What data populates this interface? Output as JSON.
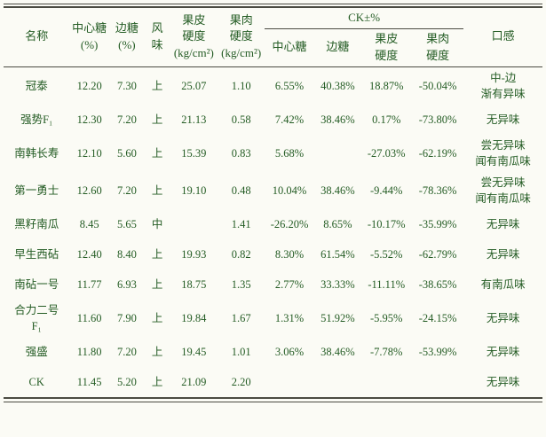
{
  "colors": {
    "text": "#245c24",
    "line": "#4b4b42",
    "background": "#fbfbf5"
  },
  "table": {
    "headers": {
      "name": "名称",
      "center_sugar": "中心糖\n(%)",
      "edge_sugar": "边糖\n(%)",
      "flavor": "风\n味",
      "rind_hardness": "果皮\n硬度\n(kg/cm²)",
      "flesh_hardness": "果肉\n硬度\n(kg/cm²)",
      "ck_group": "CK±%",
      "ck_center_sugar": "中心糖",
      "ck_edge_sugar": "边糖",
      "ck_rind_hardness": "果皮\n硬度",
      "ck_flesh_hardness": "果肉\n硬度",
      "taste": "口感"
    },
    "column_keys": [
      "center-sugar",
      "edge-sugar",
      "flavor",
      "rind-hardness",
      "flesh-hardness",
      "ck-center-sugar",
      "ck-edge-sugar",
      "ck-rind-hardness",
      "ck-flesh-hardness",
      "taste"
    ],
    "rows": [
      {
        "name": "冠泰",
        "cells": [
          "12.20",
          "7.30",
          "上",
          "25.07",
          "1.10",
          "6.55%",
          "40.38%",
          "18.87%",
          "-50.04%",
          "中-边\n渐有异味"
        ]
      },
      {
        "name": "强势F₁",
        "cells": [
          "12.30",
          "7.20",
          "上",
          "21.13",
          "0.58",
          "7.42%",
          "38.46%",
          "0.17%",
          "-73.80%",
          "无异味"
        ]
      },
      {
        "name": "南韩长寿",
        "cells": [
          "12.10",
          "5.60",
          "上",
          "15.39",
          "0.83",
          "5.68%",
          "",
          "-27.03%",
          "-62.19%",
          "尝无异味\n闻有南瓜味"
        ]
      },
      {
        "name": "第一勇士",
        "cells": [
          "12.60",
          "7.20",
          "上",
          "19.10",
          "0.48",
          "10.04%",
          "38.46%",
          "-9.44%",
          "-78.36%",
          "尝无异味\n闻有南瓜味"
        ]
      },
      {
        "name": "黑籽南瓜",
        "cells": [
          "8.45",
          "5.65",
          "中",
          "",
          "1.41",
          "-26.20%",
          "8.65%",
          "-10.17%",
          "-35.99%",
          "无异味"
        ]
      },
      {
        "name": "早生西砧",
        "cells": [
          "12.40",
          "8.40",
          "上",
          "19.93",
          "0.82",
          "8.30%",
          "61.54%",
          "-5.52%",
          "-62.79%",
          "无异味"
        ]
      },
      {
        "name": "南砧一号",
        "cells": [
          "11.77",
          "6.93",
          "上",
          "18.75",
          "1.35",
          "2.77%",
          "33.33%",
          "-11.11%",
          "-38.65%",
          "有南瓜味"
        ]
      },
      {
        "name": "合力二号\nF₁",
        "cells": [
          "11.60",
          "7.90",
          "上",
          "19.84",
          "1.67",
          "1.31%",
          "51.92%",
          "-5.95%",
          "-24.15%",
          "无异味"
        ]
      },
      {
        "name": "强盛",
        "cells": [
          "11.80",
          "7.20",
          "上",
          "19.45",
          "1.01",
          "3.06%",
          "38.46%",
          "-7.78%",
          "-53.99%",
          "无异味"
        ]
      },
      {
        "name": "CK",
        "cells": [
          "11.45",
          "5.20",
          "上",
          "21.09",
          "2.20",
          "",
          "",
          "",
          "",
          "无异味"
        ]
      }
    ]
  }
}
